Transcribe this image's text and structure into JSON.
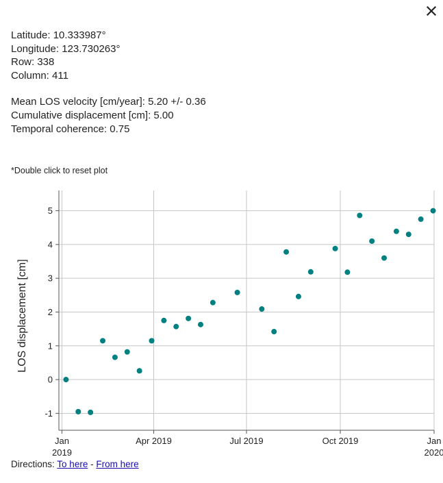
{
  "info": {
    "latitude": "Latitude: 10.333987°",
    "longitude": "Longitude: 123.730263°",
    "row": "Row: 338",
    "column": "Column: 411",
    "velocity": "Mean LOS velocity [cm/year]: 5.20 +/- 0.36",
    "cumulative": "Cumulative displacement [cm]: 5.00",
    "coherence": "Temporal coherence: 0.75"
  },
  "hint": "*Double click to reset plot",
  "directions": {
    "label": "Directions:",
    "to_here": "To here",
    "separator": "-",
    "from_here": "From here"
  },
  "icons": {
    "close": "close-icon"
  },
  "colors": {
    "point": "#008080",
    "grid": "#c6c6c6",
    "axis": "#555555",
    "link": "#1a0dab"
  },
  "chart_data": {
    "type": "scatter",
    "title": "",
    "xlabel": "",
    "ylabel": "LOS displacement [cm]",
    "xlim": [
      -3,
      365
    ],
    "ylim": [
      -1.5,
      5.6
    ],
    "x_ticks": [
      {
        "x": 0,
        "label": [
          "Jan",
          "2019"
        ]
      },
      {
        "x": 90,
        "label": [
          "Apr 2019"
        ]
      },
      {
        "x": 181,
        "label": [
          "Jul 2019"
        ]
      },
      {
        "x": 273,
        "label": [
          "Oct 2019"
        ]
      },
      {
        "x": 365,
        "label": [
          "Jan",
          "2020"
        ]
      }
    ],
    "y_ticks": [
      -1,
      0,
      1,
      2,
      3,
      4,
      5
    ],
    "points": [
      {
        "x": 4,
        "y": 0.0
      },
      {
        "x": 16,
        "y": -0.95
      },
      {
        "x": 28,
        "y": -0.97
      },
      {
        "x": 40,
        "y": 1.15
      },
      {
        "x": 52,
        "y": 0.66
      },
      {
        "x": 64,
        "y": 0.82
      },
      {
        "x": 76,
        "y": 0.26
      },
      {
        "x": 88,
        "y": 1.15
      },
      {
        "x": 100,
        "y": 1.75
      },
      {
        "x": 112,
        "y": 1.57
      },
      {
        "x": 124,
        "y": 1.81
      },
      {
        "x": 136,
        "y": 1.63
      },
      {
        "x": 148,
        "y": 2.28
      },
      {
        "x": 172,
        "y": 2.58
      },
      {
        "x": 196,
        "y": 2.09
      },
      {
        "x": 208,
        "y": 1.42
      },
      {
        "x": 220,
        "y": 3.78
      },
      {
        "x": 232,
        "y": 2.46
      },
      {
        "x": 244,
        "y": 3.19
      },
      {
        "x": 268,
        "y": 3.88
      },
      {
        "x": 280,
        "y": 3.18
      },
      {
        "x": 292,
        "y": 4.86
      },
      {
        "x": 304,
        "y": 4.1
      },
      {
        "x": 316,
        "y": 3.6
      },
      {
        "x": 328,
        "y": 4.39
      },
      {
        "x": 340,
        "y": 4.3
      },
      {
        "x": 352,
        "y": 4.75
      },
      {
        "x": 364,
        "y": 5.0
      }
    ]
  }
}
